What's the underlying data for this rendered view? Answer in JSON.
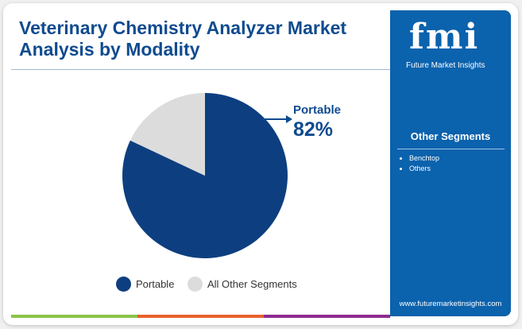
{
  "title": "Veterinary Chemistry Analyzer Market Analysis by Modality",
  "logo": {
    "text": "fmi",
    "subtitle": "Future Market Insights"
  },
  "side_panel": {
    "heading": "Other Segments",
    "items": [
      "Benchtop",
      "Others"
    ],
    "url": "www.futuremarketinsights.com"
  },
  "colors": {
    "portable": "#0d3f80",
    "others": "#dcdcdc",
    "panel": "#0b62ad",
    "bars": [
      "#8bc34a",
      "#e8622c",
      "#8e2a8e"
    ]
  },
  "chart_data": {
    "type": "pie",
    "title": "Veterinary Chemistry Analyzer Market Analysis by Modality",
    "slices": [
      {
        "label": "Portable",
        "value": 82
      },
      {
        "label": "All Other Segments",
        "value": 18
      }
    ],
    "annotation": {
      "label": "Portable",
      "value_text": "82%"
    },
    "legend_placement": "bottom"
  }
}
